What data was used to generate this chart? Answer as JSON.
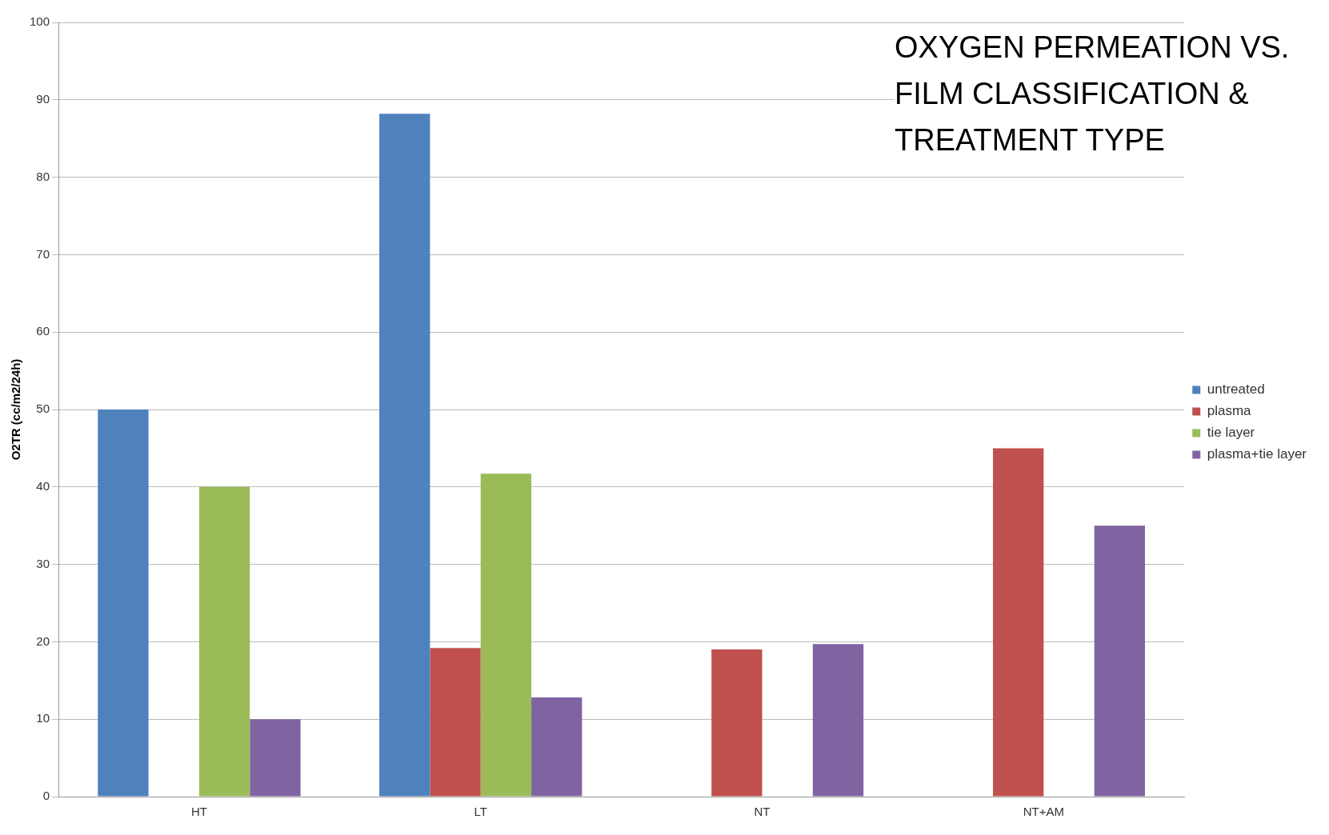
{
  "chart_data": {
    "type": "bar",
    "title": "OXYGEN PERMEATION VS. FILM CLASSIFICATION & TREATMENT TYPE",
    "ylabel": "O2TR (cc/m2/24h)",
    "categories": [
      "HT",
      "LT",
      "NT",
      "NT+AM"
    ],
    "series": [
      {
        "name": "untreated",
        "color": "#4f81bd",
        "values": [
          50,
          88.2,
          null,
          null
        ]
      },
      {
        "name": "plasma",
        "color": "#c0504d",
        "values": [
          null,
          19.2,
          19,
          45
        ]
      },
      {
        "name": "tie layer",
        "color": "#9bbb59",
        "values": [
          40,
          41.7,
          null,
          null
        ]
      },
      {
        "name": "plasma+tie layer",
        "color": "#8064a2",
        "values": [
          10,
          12.8,
          19.7,
          35
        ]
      }
    ],
    "ylim": [
      0,
      100
    ],
    "yticks": [
      0,
      10,
      20,
      30,
      40,
      50,
      60,
      70,
      80,
      90,
      100
    ],
    "grid": "y",
    "legend": "right"
  }
}
